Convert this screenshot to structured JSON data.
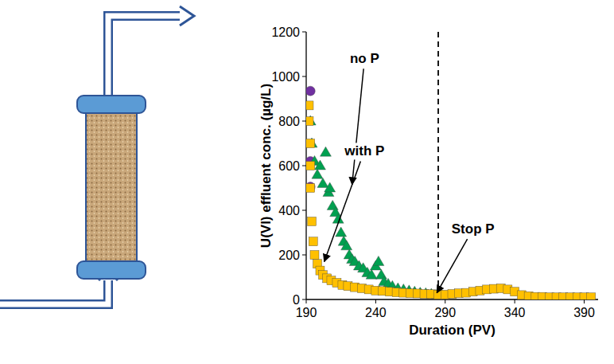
{
  "chart_data": {
    "type": "scatter",
    "y_label": "U(VI) effluent conc. (µg/L)",
    "x_label": "Duration (PV)",
    "xlim": [
      190,
      400
    ],
    "xticks": [
      190,
      240,
      290,
      340,
      390
    ],
    "ylim": [
      0,
      1200
    ],
    "yticks": [
      0,
      200,
      400,
      600,
      800,
      1000,
      1200
    ],
    "grid": false,
    "series": [
      {
        "color": "#7030a0",
        "marker": "circle",
        "x": [
          193,
          193,
          193
        ],
        "values": [
          935,
          620,
          505
        ]
      },
      {
        "color": "#00a050",
        "marker": "triangle",
        "x": [
          193,
          194,
          196,
          198,
          200,
          202,
          204,
          206,
          207,
          209,
          211,
          213,
          215,
          217,
          219,
          221,
          223,
          225,
          228,
          231,
          234,
          237,
          240,
          242,
          244,
          246,
          249,
          252,
          256,
          260,
          264,
          268,
          272,
          276,
          280,
          284
        ],
        "values": [
          800,
          700,
          620,
          560,
          600,
          520,
          660,
          480,
          500,
          420,
          390,
          360,
          300,
          260,
          240,
          200,
          180,
          170,
          150,
          140,
          120,
          110,
          150,
          170,
          110,
          80,
          70,
          60,
          50,
          45,
          40,
          35,
          30,
          28,
          25,
          22
        ]
      },
      {
        "color": "#ffc000",
        "marker": "square",
        "x": [
          192,
          192,
          193,
          193,
          193,
          194,
          195,
          196,
          198,
          200,
          202,
          205,
          208,
          212,
          216,
          220,
          225,
          230,
          235,
          240,
          245,
          250,
          255,
          260,
          265,
          270,
          275,
          280,
          285,
          290,
          295,
          300,
          305,
          310,
          315,
          320,
          325,
          330,
          335,
          340,
          345,
          350,
          355,
          360,
          365,
          370,
          375,
          380,
          385,
          390,
          395
        ],
        "values": [
          870,
          800,
          700,
          600,
          500,
          350,
          260,
          200,
          160,
          130,
          110,
          95,
          85,
          75,
          65,
          60,
          55,
          50,
          45,
          40,
          38,
          35,
          32,
          30,
          28,
          27,
          25,
          24,
          22,
          22,
          25,
          28,
          30,
          35,
          40,
          45,
          48,
          50,
          45,
          35,
          20,
          15,
          12,
          12,
          10,
          10,
          10,
          10,
          10,
          10,
          10
        ]
      }
    ],
    "reference_lines": [
      {
        "x": 285,
        "line_style": "dashed"
      }
    ],
    "annotations": [
      {
        "text": "no P",
        "label_x": 232,
        "label_y": 1060,
        "x": 223,
        "y": 515
      },
      {
        "text": "with P",
        "label_x": 232,
        "label_y": 645,
        "x": 203,
        "y": 170
      },
      {
        "text": "Stop P",
        "label_x": 310,
        "label_y": 296,
        "x": 284,
        "y": 30
      }
    ]
  }
}
